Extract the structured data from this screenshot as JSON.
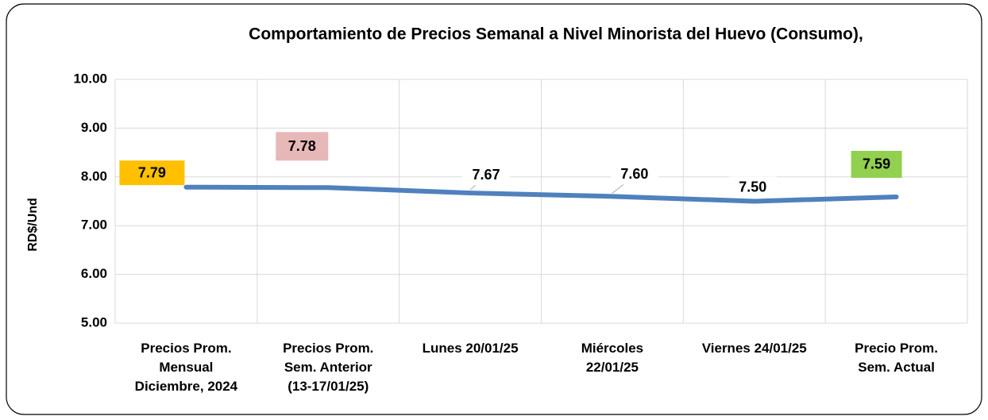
{
  "chart_data": {
    "type": "line",
    "title": "Comportamiento de Precios Semanal a Nivel Minorista del Huevo  (Consumo),",
    "y_label": "RD$/Und",
    "categories": [
      "Precios Prom.\nMensual\nDiciembre, 2024",
      "Precios Prom.\nSem. Anterior\n(13-17/01/25)",
      "Lunes      20/01/25",
      "Miércoles\n22/01/25",
      "Viernes 24/01/25",
      "Precio Prom.\nSem. Actual"
    ],
    "series": [
      {
        "name": "RD$/Und",
        "color": "#4f81bd",
        "values": [
          7.79,
          7.78,
          7.67,
          7.6,
          7.5,
          7.59
        ],
        "value_labels": [
          "7.79",
          "7.78",
          "7.67",
          "7.60",
          "7.50",
          "7.59"
        ],
        "label_colors": [
          "#ffc000",
          "#e6b8b7",
          "#ffffff",
          "#ffffff",
          "#ffffff",
          "#92d050"
        ]
      }
    ],
    "ylim": [
      5,
      10
    ],
    "yticks": [
      {
        "value": 5,
        "label": "5.00"
      },
      {
        "value": 6,
        "label": "6.00"
      },
      {
        "value": 7,
        "label": "7.00"
      },
      {
        "value": 8,
        "label": "8.00"
      },
      {
        "value": 9,
        "label": "9.00"
      },
      {
        "value": 10,
        "label": "10.00"
      }
    ],
    "grid": true
  }
}
